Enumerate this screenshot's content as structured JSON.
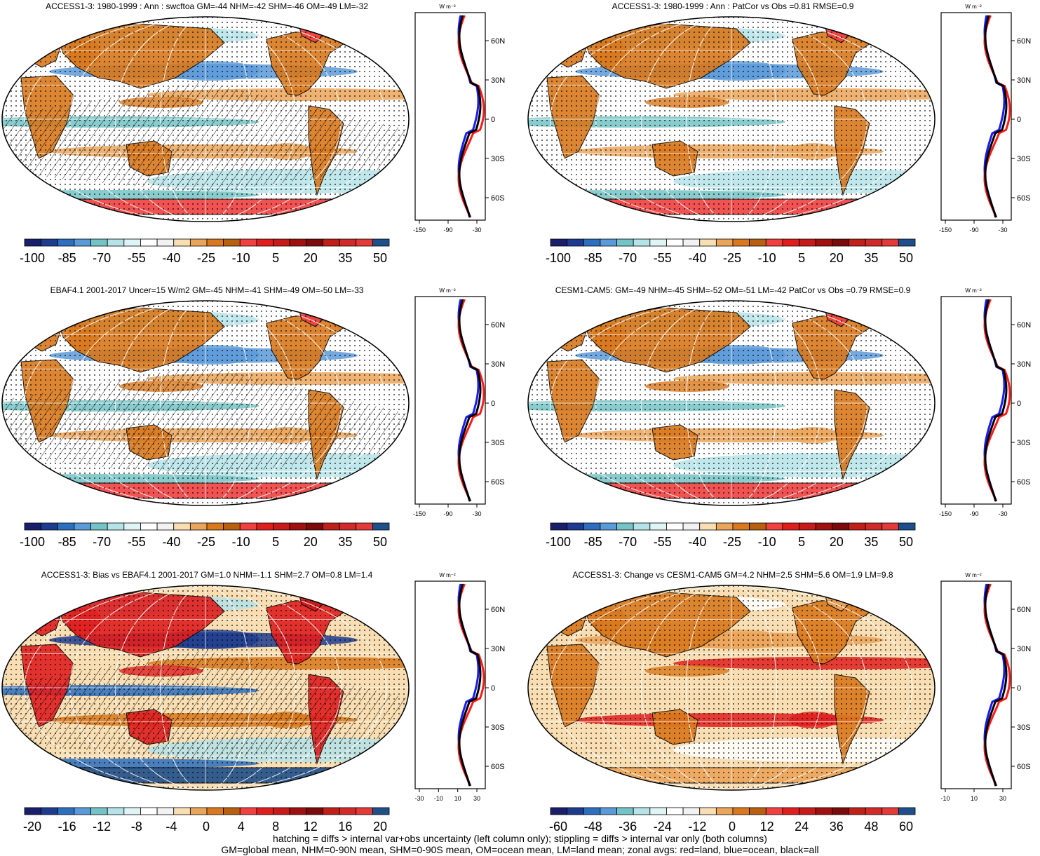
{
  "panels": [
    {
      "id": "p1",
      "title": "ACCESS1-3: 1980-1999 : Ann : swcftoa GM=-44 NHM=-42 SHM=-46 OM=-49 LM=-32",
      "hatching": true,
      "scheme": "clim",
      "colorbar": {
        "colors": [
          "#1a1f6b",
          "#1e3c8f",
          "#2c6fbe",
          "#5b9ad8",
          "#74c3c6",
          "#b5e3e7",
          "#dff4f4",
          "#ffffff",
          "#f2f2f2",
          "#f8deb2",
          "#eba55a",
          "#d9781c",
          "#b8600f",
          "#f04040",
          "#e01e1e",
          "#c81a1a",
          "#a01010",
          "#7b0a0a",
          "#c0201a",
          "#d12a2a",
          "#e33a3a",
          "#1f4f8a"
        ],
        "labels": [
          "-100",
          "-85",
          "-70",
          "-55",
          "-40",
          "-25",
          "-10",
          "5",
          "20",
          "35",
          "50"
        ]
      },
      "zonal": {
        "units": "W m⁻²",
        "xticks": [
          "-150",
          "-90",
          "-30"
        ],
        "yticks": [
          "60N",
          "30N",
          "0",
          "30S",
          "60S"
        ]
      }
    },
    {
      "id": "p2",
      "title": "ACCESS1-3: 1980-1999 : Ann : PatCor vs Obs =0.81 RMSE=0.9",
      "hatching": false,
      "scheme": "clim",
      "colorbar": {
        "colors": [
          "#1a1f6b",
          "#1e3c8f",
          "#2c6fbe",
          "#5b9ad8",
          "#74c3c6",
          "#b5e3e7",
          "#dff4f4",
          "#ffffff",
          "#f2f2f2",
          "#f8deb2",
          "#eba55a",
          "#d9781c",
          "#b8600f",
          "#f04040",
          "#e01e1e",
          "#c81a1a",
          "#a01010",
          "#7b0a0a",
          "#c0201a",
          "#d12a2a",
          "#e33a3a",
          "#1f4f8a"
        ],
        "labels": [
          "-100",
          "-85",
          "-70",
          "-55",
          "-40",
          "-25",
          "-10",
          "5",
          "20",
          "35",
          "50"
        ]
      },
      "zonal": {
        "units": "W m⁻²",
        "xticks": [
          "-150",
          "-90",
          "-30"
        ],
        "yticks": [
          "60N",
          "30N",
          "0",
          "30S",
          "60S"
        ]
      }
    },
    {
      "id": "p3",
      "title": "EBAF4.1 2001-2017 Uncer=15 W/m2 GM=-45 NHM=-41 SHM=-49 OM=-50 LM=-33",
      "hatching": true,
      "scheme": "clim",
      "colorbar": {
        "colors": [
          "#1a1f6b",
          "#1e3c8f",
          "#2c6fbe",
          "#5b9ad8",
          "#74c3c6",
          "#b5e3e7",
          "#dff4f4",
          "#ffffff",
          "#f2f2f2",
          "#f8deb2",
          "#eba55a",
          "#d9781c",
          "#b8600f",
          "#f04040",
          "#e01e1e",
          "#c81a1a",
          "#a01010",
          "#7b0a0a",
          "#c0201a",
          "#d12a2a",
          "#e33a3a",
          "#1f4f8a"
        ],
        "labels": [
          "-100",
          "-85",
          "-70",
          "-55",
          "-40",
          "-25",
          "-10",
          "5",
          "20",
          "35",
          "50"
        ]
      },
      "zonal": {
        "units": "W m⁻²",
        "xticks": [
          "-150",
          "-90",
          "-30"
        ],
        "yticks": [
          "60N",
          "30N",
          "0",
          "30S",
          "60S"
        ]
      }
    },
    {
      "id": "p4",
      "title": "CESM1-CAM5: GM=-49 NHM=-45 SHM=-52 OM=-51 LM=-42 PatCor vs Obs =0.79 RMSE=0.9",
      "hatching": false,
      "scheme": "clim",
      "colorbar": {
        "colors": [
          "#1a1f6b",
          "#1e3c8f",
          "#2c6fbe",
          "#5b9ad8",
          "#74c3c6",
          "#b5e3e7",
          "#dff4f4",
          "#ffffff",
          "#f2f2f2",
          "#f8deb2",
          "#eba55a",
          "#d9781c",
          "#b8600f",
          "#f04040",
          "#e01e1e",
          "#c81a1a",
          "#a01010",
          "#7b0a0a",
          "#c0201a",
          "#d12a2a",
          "#e33a3a",
          "#1f4f8a"
        ],
        "labels": [
          "-100",
          "-85",
          "-70",
          "-55",
          "-40",
          "-25",
          "-10",
          "5",
          "20",
          "35",
          "50"
        ]
      },
      "zonal": {
        "units": "W m⁻²",
        "xticks": [
          "-150",
          "-90",
          "-30"
        ],
        "yticks": [
          "60N",
          "30N",
          "0",
          "30S",
          "60S"
        ]
      }
    },
    {
      "id": "p5",
      "title": "ACCESS1-3: Bias vs EBAF4.1 2001-2017 GM=1.0 NHM=-1.1 SHM=2.7 OM=0.8 LM=1.4",
      "hatching": true,
      "scheme": "bias",
      "colorbar": {
        "colors": [
          "#1a1f6b",
          "#1e3c8f",
          "#2c6fbe",
          "#5b9ad8",
          "#74c3c6",
          "#b5e3e7",
          "#dff4f4",
          "#ffffff",
          "#f2f2f2",
          "#f8deb2",
          "#eba55a",
          "#d9781c",
          "#b8600f",
          "#f04040",
          "#e01e1e",
          "#c81a1a",
          "#a01010",
          "#7b0a0a",
          "#c0201a",
          "#d12a2a",
          "#e33a3a",
          "#1f4f8a"
        ],
        "labels": [
          "-20",
          "-16",
          "-12",
          "-8",
          "-4",
          "0",
          "4",
          "8",
          "12",
          "16",
          "20"
        ]
      },
      "zonal": {
        "units": "W m⁻²",
        "xticks": [
          "-30",
          "-10",
          "10",
          "30"
        ],
        "yticks": [
          "60N",
          "30N",
          "0",
          "30S",
          "60S"
        ]
      }
    },
    {
      "id": "p6",
      "title": "ACCESS1-3: Change vs CESM1-CAM5 GM=4.2 NHM=2.5 SHM=5.6 OM=1.9 LM=9.8",
      "hatching": false,
      "scheme": "change",
      "colorbar": {
        "colors": [
          "#1a1f6b",
          "#1e3c8f",
          "#2c6fbe",
          "#5b9ad8",
          "#74c3c6",
          "#b5e3e7",
          "#dff4f4",
          "#ffffff",
          "#f2f2f2",
          "#f8deb2",
          "#eba55a",
          "#d9781c",
          "#b8600f",
          "#f04040",
          "#e01e1e",
          "#c81a1a",
          "#a01010",
          "#7b0a0a",
          "#c0201a",
          "#d12a2a",
          "#e33a3a",
          "#1f4f8a"
        ],
        "labels": [
          "-60",
          "-48",
          "-36",
          "-24",
          "-12",
          "0",
          "12",
          "24",
          "36",
          "48",
          "60"
        ]
      },
      "zonal": {
        "units": "W m⁻²",
        "xticks": [
          "-10",
          "10",
          "30"
        ],
        "yticks": [
          "60N",
          "30N",
          "0",
          "30S",
          "60S"
        ]
      }
    }
  ],
  "footer": {
    "line1": "hatching = diffs > internal var+obs uncertainty (left column only); stippling = diffs > internal var only (both columns)",
    "line2": "GM=global mean, NHM=0-90N mean, SHM=0-90S mean, OM=ocean mean, LM=land mean; zonal avgs: red=land, blue=ocean, black=all"
  },
  "colors": {
    "land_line": "#ff1a1a",
    "ocean_line": "#1a1aff",
    "all_line": "#000000"
  }
}
